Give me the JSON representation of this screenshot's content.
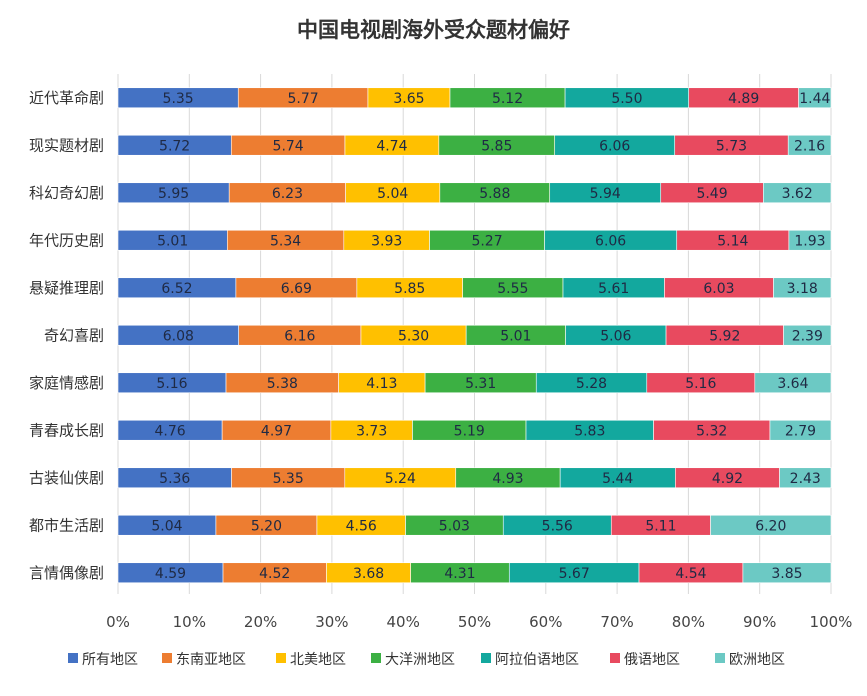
{
  "chart_data": {
    "type": "bar",
    "orientation": "horizontal",
    "stacked": "percent",
    "title": "中国电视剧海外受众题材偏好",
    "categories": [
      "近代革命剧",
      "现实题材剧",
      "科幻奇幻剧",
      "年代历史剧",
      "悬疑推理剧",
      "奇幻喜剧",
      "家庭情感剧",
      "青春成长剧",
      "古装仙侠剧",
      "都市生活剧",
      "言情偶像剧"
    ],
    "series": [
      {
        "name": "所有地区",
        "color": "#4472c4",
        "values": [
          5.35,
          5.72,
          5.95,
          5.01,
          6.52,
          6.08,
          5.16,
          4.76,
          5.36,
          5.04,
          4.59
        ]
      },
      {
        "name": "东南亚地区",
        "color": "#ed7d31",
        "values": [
          5.77,
          5.74,
          6.23,
          5.34,
          6.69,
          6.16,
          5.38,
          4.97,
          5.35,
          5.2,
          4.52
        ]
      },
      {
        "name": "北美地区",
        "color": "#ffc000",
        "values": [
          3.65,
          4.74,
          5.04,
          3.93,
          5.85,
          5.3,
          4.13,
          3.73,
          5.24,
          4.56,
          3.68
        ]
      },
      {
        "name": "大洋洲地区",
        "color": "#3cb043",
        "values": [
          5.12,
          5.85,
          5.88,
          5.27,
          5.55,
          5.01,
          5.31,
          5.19,
          4.93,
          5.03,
          4.31
        ]
      },
      {
        "name": "阿拉伯语地区",
        "color": "#13a89e",
        "values": [
          5.5,
          6.06,
          5.94,
          6.06,
          5.61,
          5.06,
          5.28,
          5.83,
          5.44,
          5.56,
          5.67
        ]
      },
      {
        "name": "俄语地区",
        "color": "#e84a5f",
        "values": [
          4.89,
          5.73,
          5.49,
          5.14,
          6.03,
          5.92,
          5.16,
          5.32,
          4.92,
          5.11,
          4.54
        ]
      },
      {
        "name": "欧洲地区",
        "color": "#6cc9c4",
        "values": [
          1.44,
          2.16,
          3.62,
          1.93,
          3.18,
          2.39,
          3.64,
          2.79,
          2.43,
          6.2,
          3.85
        ]
      }
    ],
    "value_labels": [
      [
        "5.35",
        "5.77",
        "3.65",
        "5.12",
        "5.50",
        "4.89",
        "1.44"
      ],
      [
        "5.72",
        "5.74",
        "4.74",
        "5.85",
        "6.06",
        "5.73",
        "2.16"
      ],
      [
        "5.95",
        "6.23",
        "5.04",
        "5.88",
        "5.94",
        "5.49",
        "3.62"
      ],
      [
        "5.01",
        "5.34",
        "3.93",
        "5.27",
        "6.06",
        "5.14",
        "1.93"
      ],
      [
        "6.52",
        "6.69",
        "5.85",
        "5.55",
        "5.61",
        "6.03",
        "3.18"
      ],
      [
        "6.08",
        "6.16",
        "5.30",
        "5.01",
        "5.06",
        "5.92",
        "2.39"
      ],
      [
        "5.16",
        "5.38",
        "4.13",
        "5.31",
        "5.28",
        "5.16",
        "3.64"
      ],
      [
        "4.76",
        "4.97",
        "3.73",
        "5.19",
        "5.83",
        "5.32",
        "2.79"
      ],
      [
        "5.36",
        "5.35",
        "5.24",
        "4.93",
        "5.44",
        "4.92",
        "2.43"
      ],
      [
        "5.04",
        "5.20",
        "4.56",
        "5.03",
        "5.56",
        "5.11",
        "6.20"
      ],
      [
        "4.59",
        "4.52",
        "3.68",
        "4.31",
        "5.67",
        "4.54",
        "3.85"
      ]
    ],
    "xaxis": {
      "ticks": [
        0,
        10,
        20,
        30,
        40,
        50,
        60,
        70,
        80,
        90,
        100
      ],
      "tick_labels": [
        "0%",
        "10%",
        "20%",
        "30%",
        "40%",
        "50%",
        "60%",
        "70%",
        "80%",
        "90%",
        "100%"
      ],
      "range": [
        0,
        100
      ]
    },
    "grid": "vertical",
    "legend": "bottom"
  }
}
